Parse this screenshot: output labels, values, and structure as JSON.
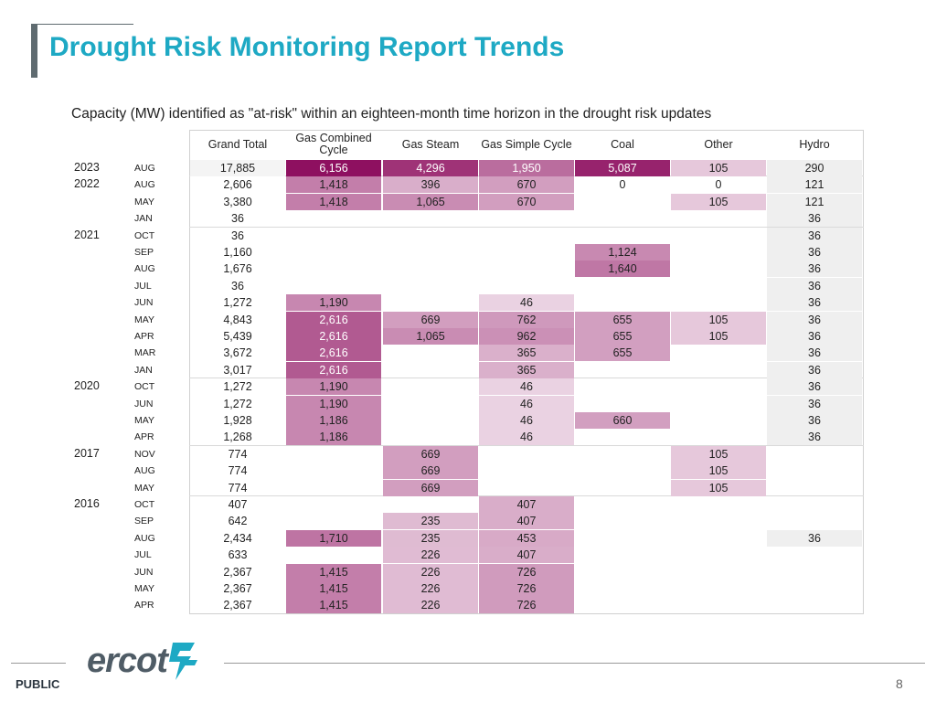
{
  "header": {
    "title": "Drought Risk Monitoring Report Trends"
  },
  "subtitle": "Capacity (MW) identified as \"at-risk\" within an eighteen-month time horizon in the drought risk updates",
  "columns": [
    "Grand Total",
    "Gas Combined Cycle",
    "Gas Steam",
    "Gas Simple Cycle",
    "Coal",
    "Other",
    "Hydro"
  ],
  "rows": [
    {
      "year": "2023",
      "month": "AUG",
      "values": [
        "17,885",
        "6,156",
        "4,296",
        "1,950",
        "5,087",
        "105",
        "290"
      ]
    },
    {
      "year": "2022",
      "month": "AUG",
      "values": [
        "2,606",
        "1,418",
        "396",
        "670",
        "0",
        "0",
        "121"
      ]
    },
    {
      "year": "",
      "month": "MAY",
      "values": [
        "3,380",
        "1,418",
        "1,065",
        "670",
        "",
        "105",
        "121"
      ]
    },
    {
      "year": "",
      "month": "JAN",
      "values": [
        "36",
        "",
        "",
        "",
        "",
        "",
        "36"
      ]
    },
    {
      "year": "2021",
      "month": "OCT",
      "values": [
        "36",
        "",
        "",
        "",
        "",
        "",
        "36"
      ]
    },
    {
      "year": "",
      "month": "SEP",
      "values": [
        "1,160",
        "",
        "",
        "",
        "1,124",
        "",
        "36"
      ]
    },
    {
      "year": "",
      "month": "AUG",
      "values": [
        "1,676",
        "",
        "",
        "",
        "1,640",
        "",
        "36"
      ]
    },
    {
      "year": "",
      "month": "JUL",
      "values": [
        "36",
        "",
        "",
        "",
        "",
        "",
        "36"
      ]
    },
    {
      "year": "",
      "month": "JUN",
      "values": [
        "1,272",
        "1,190",
        "",
        "46",
        "",
        "",
        "36"
      ]
    },
    {
      "year": "",
      "month": "MAY",
      "values": [
        "4,843",
        "2,616",
        "669",
        "762",
        "655",
        "105",
        "36"
      ]
    },
    {
      "year": "",
      "month": "APR",
      "values": [
        "5,439",
        "2,616",
        "1,065",
        "962",
        "655",
        "105",
        "36"
      ]
    },
    {
      "year": "",
      "month": "MAR",
      "values": [
        "3,672",
        "2,616",
        "",
        "365",
        "655",
        "",
        "36"
      ]
    },
    {
      "year": "",
      "month": "JAN",
      "values": [
        "3,017",
        "2,616",
        "",
        "365",
        "",
        "",
        "36"
      ]
    },
    {
      "year": "2020",
      "month": "OCT",
      "values": [
        "1,272",
        "1,190",
        "",
        "46",
        "",
        "",
        "36"
      ]
    },
    {
      "year": "",
      "month": "JUN",
      "values": [
        "1,272",
        "1,190",
        "",
        "46",
        "",
        "",
        "36"
      ]
    },
    {
      "year": "",
      "month": "MAY",
      "values": [
        "1,928",
        "1,186",
        "",
        "46",
        "660",
        "",
        "36"
      ]
    },
    {
      "year": "",
      "month": "APR",
      "values": [
        "1,268",
        "1,186",
        "",
        "46",
        "",
        "",
        "36"
      ]
    },
    {
      "year": "2017",
      "month": "NOV",
      "values": [
        "774",
        "",
        "669",
        "",
        "",
        "105",
        ""
      ]
    },
    {
      "year": "",
      "month": "AUG",
      "values": [
        "774",
        "",
        "669",
        "",
        "",
        "105",
        ""
      ]
    },
    {
      "year": "",
      "month": "MAY",
      "values": [
        "774",
        "",
        "669",
        "",
        "",
        "105",
        ""
      ]
    },
    {
      "year": "2016",
      "month": "OCT",
      "values": [
        "407",
        "",
        "",
        "407",
        "",
        "",
        ""
      ]
    },
    {
      "year": "",
      "month": "SEP",
      "values": [
        "642",
        "",
        "235",
        "407",
        "",
        "",
        ""
      ]
    },
    {
      "year": "",
      "month": "AUG",
      "values": [
        "2,434",
        "1,710",
        "235",
        "453",
        "",
        "",
        "36"
      ]
    },
    {
      "year": "",
      "month": "JUL",
      "values": [
        "633",
        "",
        "226",
        "407",
        "",
        "",
        ""
      ]
    },
    {
      "year": "",
      "month": "JUN",
      "values": [
        "2,367",
        "1,415",
        "226",
        "726",
        "",
        "",
        ""
      ]
    },
    {
      "year": "",
      "month": "MAY",
      "values": [
        "2,367",
        "1,415",
        "226",
        "726",
        "",
        "",
        ""
      ]
    },
    {
      "year": "",
      "month": "APR",
      "values": [
        "2,367",
        "1,415",
        "226",
        "726",
        "",
        "",
        ""
      ]
    }
  ],
  "footer": {
    "label": "PUBLIC",
    "logo_text": "ercot",
    "page_number": "8"
  },
  "colors": {
    "title": "#1ea9c4",
    "heat_max": "#8e1060",
    "heat_min": "#f3e4ee",
    "neutral": "#efefef"
  }
}
